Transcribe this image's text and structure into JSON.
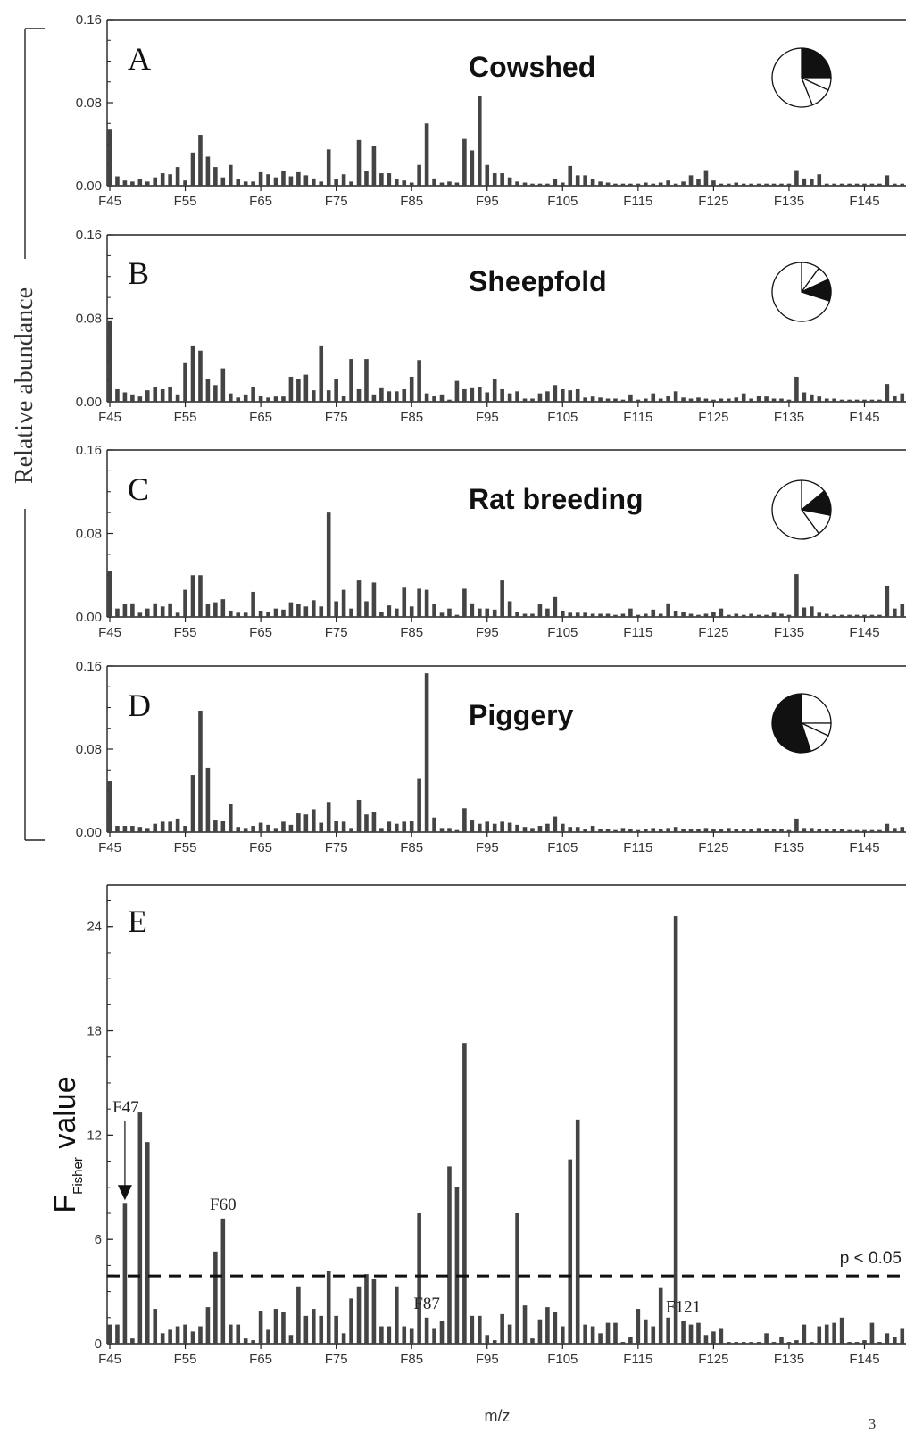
{
  "figure": {
    "shared_ylabel": "Relative abundance",
    "xlabel": "m/z",
    "page_number": "3",
    "threshold_label": "p < 0.05"
  },
  "colors": {
    "bar": "#444444",
    "axis": "#222222",
    "pie_fill": "#111111"
  },
  "chart_data": [
    {
      "type": "bar",
      "panel": "A",
      "title": "Cowshed",
      "ylim": [
        0,
        0.16
      ],
      "yticks": [
        "0.00",
        "0.08",
        "0.16"
      ],
      "xlim": [
        45,
        150
      ],
      "xticks": [
        "F45",
        "F55",
        "F65",
        "F75",
        "F85",
        "F95",
        "F105",
        "F115",
        "F125",
        "F135",
        "F145"
      ],
      "pie": [
        {
          "value": 0.25,
          "filled": true
        },
        {
          "value": 0.07,
          "filled": false
        },
        {
          "value": 0.12,
          "filled": false
        },
        {
          "value": 0.56,
          "filled": false
        }
      ],
      "x": [
        45,
        46,
        47,
        48,
        49,
        50,
        51,
        52,
        53,
        54,
        55,
        56,
        57,
        58,
        59,
        60,
        61,
        62,
        63,
        64,
        65,
        66,
        67,
        68,
        69,
        70,
        71,
        72,
        73,
        74,
        75,
        76,
        77,
        78,
        79,
        80,
        81,
        82,
        83,
        84,
        85,
        86,
        87,
        88,
        89,
        90,
        91,
        92,
        93,
        94,
        95,
        96,
        97,
        98,
        99,
        100,
        101,
        102,
        103,
        104,
        105,
        106,
        107,
        108,
        109,
        110,
        111,
        112,
        113,
        114,
        115,
        116,
        117,
        118,
        119,
        120,
        121,
        122,
        123,
        124,
        125,
        126,
        127,
        128,
        129,
        130,
        131,
        132,
        133,
        134,
        135,
        136,
        137,
        138,
        139,
        140,
        141,
        142,
        143,
        144,
        145,
        146,
        147,
        148,
        149,
        150
      ],
      "values": [
        0.054,
        0.009,
        0.005,
        0.004,
        0.006,
        0.004,
        0.008,
        0.012,
        0.011,
        0.018,
        0.005,
        0.032,
        0.049,
        0.028,
        0.018,
        0.008,
        0.02,
        0.006,
        0.004,
        0.004,
        0.013,
        0.011,
        0.008,
        0.014,
        0.009,
        0.013,
        0.01,
        0.007,
        0.004,
        0.035,
        0.006,
        0.011,
        0.004,
        0.044,
        0.014,
        0.038,
        0.012,
        0.012,
        0.006,
        0.005,
        0.003,
        0.02,
        0.06,
        0.007,
        0.003,
        0.004,
        0.003,
        0.045,
        0.034,
        0.086,
        0.02,
        0.012,
        0.012,
        0.008,
        0.004,
        0.003,
        0.002,
        0.002,
        0.002,
        0.006,
        0.003,
        0.019,
        0.01,
        0.01,
        0.006,
        0.004,
        0.003,
        0.002,
        0.002,
        0.002,
        0.002,
        0.003,
        0.002,
        0.003,
        0.005,
        0.002,
        0.004,
        0.01,
        0.006,
        0.015,
        0.005,
        0.002,
        0.002,
        0.003,
        0.002,
        0.002,
        0.002,
        0.002,
        0.002,
        0.002,
        0.002,
        0.015,
        0.007,
        0.006,
        0.011,
        0.002,
        0.002,
        0.002,
        0.002,
        0.002,
        0.002,
        0.002,
        0.002,
        0.01,
        0.002,
        0.002
      ]
    },
    {
      "type": "bar",
      "panel": "B",
      "title": "Sheepfold",
      "ylim": [
        0,
        0.16
      ],
      "yticks": [
        "0.00",
        "0.08",
        "0.16"
      ],
      "xlim": [
        45,
        150
      ],
      "xticks": [
        "F45",
        "F55",
        "F65",
        "F75",
        "F85",
        "F95",
        "F105",
        "F115",
        "F125",
        "F135",
        "F145"
      ],
      "pie": [
        {
          "value": 0.1,
          "filled": false
        },
        {
          "value": 0.08,
          "filled": false
        },
        {
          "value": 0.12,
          "filled": true
        },
        {
          "value": 0.7,
          "filled": false
        }
      ],
      "x": [
        45,
        46,
        47,
        48,
        49,
        50,
        51,
        52,
        53,
        54,
        55,
        56,
        57,
        58,
        59,
        60,
        61,
        62,
        63,
        64,
        65,
        66,
        67,
        68,
        69,
        70,
        71,
        72,
        73,
        74,
        75,
        76,
        77,
        78,
        79,
        80,
        81,
        82,
        83,
        84,
        85,
        86,
        87,
        88,
        89,
        90,
        91,
        92,
        93,
        94,
        95,
        96,
        97,
        98,
        99,
        100,
        101,
        102,
        103,
        104,
        105,
        106,
        107,
        108,
        109,
        110,
        111,
        112,
        113,
        114,
        115,
        116,
        117,
        118,
        119,
        120,
        121,
        122,
        123,
        124,
        125,
        126,
        127,
        128,
        129,
        130,
        131,
        132,
        133,
        134,
        135,
        136,
        137,
        138,
        139,
        140,
        141,
        142,
        143,
        144,
        145,
        146,
        147,
        148,
        149,
        150
      ],
      "values": [
        0.078,
        0.012,
        0.009,
        0.007,
        0.005,
        0.011,
        0.014,
        0.012,
        0.014,
        0.007,
        0.037,
        0.054,
        0.049,
        0.022,
        0.016,
        0.032,
        0.008,
        0.004,
        0.007,
        0.014,
        0.006,
        0.004,
        0.005,
        0.005,
        0.024,
        0.022,
        0.026,
        0.011,
        0.054,
        0.011,
        0.022,
        0.006,
        0.041,
        0.012,
        0.041,
        0.007,
        0.013,
        0.01,
        0.01,
        0.012,
        0.024,
        0.04,
        0.008,
        0.006,
        0.007,
        0.002,
        0.02,
        0.012,
        0.013,
        0.014,
        0.009,
        0.022,
        0.012,
        0.008,
        0.01,
        0.003,
        0.003,
        0.008,
        0.01,
        0.016,
        0.012,
        0.011,
        0.012,
        0.004,
        0.005,
        0.004,
        0.003,
        0.003,
        0.002,
        0.007,
        0.002,
        0.003,
        0.008,
        0.003,
        0.006,
        0.01,
        0.004,
        0.003,
        0.004,
        0.003,
        0.002,
        0.003,
        0.003,
        0.004,
        0.008,
        0.003,
        0.006,
        0.005,
        0.003,
        0.003,
        0.002,
        0.024,
        0.009,
        0.007,
        0.005,
        0.003,
        0.003,
        0.002,
        0.002,
        0.002,
        0.002,
        0.002,
        0.002,
        0.017,
        0.006,
        0.008
      ]
    },
    {
      "type": "bar",
      "panel": "C",
      "title": "Rat breeding",
      "ylim": [
        0,
        0.16
      ],
      "yticks": [
        "0.00",
        "0.08",
        "0.16"
      ],
      "xlim": [
        45,
        150
      ],
      "xticks": [
        "F45",
        "F55",
        "F65",
        "F75",
        "F85",
        "F95",
        "F105",
        "F115",
        "F125",
        "F135",
        "F145"
      ],
      "pie": [
        {
          "value": 0.14,
          "filled": false
        },
        {
          "value": 0.14,
          "filled": true
        },
        {
          "value": 0.12,
          "filled": false
        },
        {
          "value": 0.6,
          "filled": false
        }
      ],
      "x": [
        45,
        46,
        47,
        48,
        49,
        50,
        51,
        52,
        53,
        54,
        55,
        56,
        57,
        58,
        59,
        60,
        61,
        62,
        63,
        64,
        65,
        66,
        67,
        68,
        69,
        70,
        71,
        72,
        73,
        74,
        75,
        76,
        77,
        78,
        79,
        80,
        81,
        82,
        83,
        84,
        85,
        86,
        87,
        88,
        89,
        90,
        91,
        92,
        93,
        94,
        95,
        96,
        97,
        98,
        99,
        100,
        101,
        102,
        103,
        104,
        105,
        106,
        107,
        108,
        109,
        110,
        111,
        112,
        113,
        114,
        115,
        116,
        117,
        118,
        119,
        120,
        121,
        122,
        123,
        124,
        125,
        126,
        127,
        128,
        129,
        130,
        131,
        132,
        133,
        134,
        135,
        136,
        137,
        138,
        139,
        140,
        141,
        142,
        143,
        144,
        145,
        146,
        147,
        148,
        149,
        150
      ],
      "values": [
        0.044,
        0.008,
        0.012,
        0.013,
        0.004,
        0.008,
        0.013,
        0.01,
        0.013,
        0.004,
        0.026,
        0.04,
        0.04,
        0.012,
        0.014,
        0.017,
        0.006,
        0.004,
        0.004,
        0.024,
        0.006,
        0.005,
        0.008,
        0.007,
        0.014,
        0.012,
        0.01,
        0.016,
        0.01,
        0.1,
        0.015,
        0.026,
        0.008,
        0.035,
        0.015,
        0.033,
        0.005,
        0.011,
        0.008,
        0.028,
        0.01,
        0.027,
        0.026,
        0.012,
        0.004,
        0.008,
        0.002,
        0.027,
        0.013,
        0.008,
        0.008,
        0.007,
        0.035,
        0.015,
        0.005,
        0.003,
        0.003,
        0.012,
        0.008,
        0.019,
        0.006,
        0.004,
        0.004,
        0.004,
        0.003,
        0.003,
        0.003,
        0.002,
        0.003,
        0.008,
        0.002,
        0.003,
        0.007,
        0.003,
        0.013,
        0.006,
        0.005,
        0.003,
        0.002,
        0.003,
        0.005,
        0.008,
        0.002,
        0.003,
        0.002,
        0.003,
        0.002,
        0.002,
        0.004,
        0.003,
        0.002,
        0.041,
        0.009,
        0.01,
        0.004,
        0.003,
        0.002,
        0.002,
        0.002,
        0.002,
        0.002,
        0.002,
        0.002,
        0.03,
        0.008,
        0.012
      ]
    },
    {
      "type": "bar",
      "panel": "D",
      "title": "Piggery",
      "ylim": [
        0,
        0.16
      ],
      "yticks": [
        "0.00",
        "0.08",
        "0.16"
      ],
      "xlim": [
        45,
        150
      ],
      "xticks": [
        "F45",
        "F55",
        "F65",
        "F75",
        "F85",
        "F95",
        "F105",
        "F115",
        "F125",
        "F135",
        "F145"
      ],
      "pie": [
        {
          "value": 0.25,
          "filled": false
        },
        {
          "value": 0.07,
          "filled": false
        },
        {
          "value": 0.13,
          "filled": false
        },
        {
          "value": 0.55,
          "filled": true
        }
      ],
      "x": [
        45,
        46,
        47,
        48,
        49,
        50,
        51,
        52,
        53,
        54,
        55,
        56,
        57,
        58,
        59,
        60,
        61,
        62,
        63,
        64,
        65,
        66,
        67,
        68,
        69,
        70,
        71,
        72,
        73,
        74,
        75,
        76,
        77,
        78,
        79,
        80,
        81,
        82,
        83,
        84,
        85,
        86,
        87,
        88,
        89,
        90,
        91,
        92,
        93,
        94,
        95,
        96,
        97,
        98,
        99,
        100,
        101,
        102,
        103,
        104,
        105,
        106,
        107,
        108,
        109,
        110,
        111,
        112,
        113,
        114,
        115,
        116,
        117,
        118,
        119,
        120,
        121,
        122,
        123,
        124,
        125,
        126,
        127,
        128,
        129,
        130,
        131,
        132,
        133,
        134,
        135,
        136,
        137,
        138,
        139,
        140,
        141,
        142,
        143,
        144,
        145,
        146,
        147,
        148,
        149,
        150
      ],
      "values": [
        0.049,
        0.006,
        0.006,
        0.006,
        0.005,
        0.004,
        0.008,
        0.01,
        0.01,
        0.013,
        0.006,
        0.055,
        0.117,
        0.062,
        0.012,
        0.011,
        0.027,
        0.005,
        0.004,
        0.006,
        0.009,
        0.007,
        0.004,
        0.01,
        0.007,
        0.018,
        0.017,
        0.022,
        0.009,
        0.029,
        0.011,
        0.01,
        0.004,
        0.031,
        0.017,
        0.019,
        0.004,
        0.01,
        0.008,
        0.01,
        0.011,
        0.052,
        0.153,
        0.014,
        0.004,
        0.004,
        0.002,
        0.023,
        0.012,
        0.008,
        0.01,
        0.008,
        0.01,
        0.009,
        0.007,
        0.005,
        0.004,
        0.006,
        0.008,
        0.015,
        0.008,
        0.005,
        0.005,
        0.003,
        0.006,
        0.003,
        0.003,
        0.002,
        0.004,
        0.003,
        0.002,
        0.003,
        0.004,
        0.003,
        0.004,
        0.005,
        0.003,
        0.003,
        0.003,
        0.004,
        0.003,
        0.003,
        0.004,
        0.003,
        0.003,
        0.003,
        0.004,
        0.003,
        0.003,
        0.003,
        0.002,
        0.013,
        0.004,
        0.004,
        0.003,
        0.003,
        0.003,
        0.003,
        0.002,
        0.002,
        0.002,
        0.002,
        0.002,
        0.008,
        0.004,
        0.005
      ]
    },
    {
      "type": "bar",
      "panel": "E",
      "ylabel": "F",
      "ylabel_subscript": "Fisher",
      "ylabel_suffix": "value",
      "xlabel": "m/z",
      "ylim": [
        0,
        26.4
      ],
      "yticks": [
        "0",
        "6",
        "12",
        "18",
        "24"
      ],
      "xlim": [
        45,
        150
      ],
      "xticks": [
        "F45",
        "F55",
        "F65",
        "F75",
        "F85",
        "F95",
        "F105",
        "F115",
        "F125",
        "F135",
        "F145"
      ],
      "threshold": 3.9,
      "annotations": [
        {
          "label": "F47",
          "x": 47,
          "arrow": true
        },
        {
          "label": "F60",
          "x": 60
        },
        {
          "label": "F87",
          "x": 87
        },
        {
          "label": "F121",
          "x": 121
        }
      ],
      "x": [
        45,
        46,
        47,
        48,
        49,
        50,
        51,
        52,
        53,
        54,
        55,
        56,
        57,
        58,
        59,
        60,
        61,
        62,
        63,
        64,
        65,
        66,
        67,
        68,
        69,
        70,
        71,
        72,
        73,
        74,
        75,
        76,
        77,
        78,
        79,
        80,
        81,
        82,
        83,
        84,
        85,
        86,
        87,
        88,
        89,
        90,
        91,
        92,
        93,
        94,
        95,
        96,
        97,
        98,
        99,
        100,
        101,
        102,
        103,
        104,
        105,
        106,
        107,
        108,
        109,
        110,
        111,
        112,
        113,
        114,
        115,
        116,
        117,
        118,
        119,
        120,
        121,
        122,
        123,
        124,
        125,
        126,
        127,
        128,
        129,
        130,
        131,
        132,
        133,
        134,
        135,
        136,
        137,
        138,
        139,
        140,
        141,
        142,
        143,
        144,
        145,
        146,
        147,
        148,
        149,
        150
      ],
      "values": [
        1.1,
        1.1,
        8.1,
        0.3,
        13.3,
        11.6,
        2.0,
        0.6,
        0.8,
        1.0,
        1.1,
        0.7,
        1.0,
        2.1,
        5.3,
        7.2,
        1.1,
        1.1,
        0.3,
        0.2,
        1.9,
        0.8,
        2.0,
        1.8,
        0.5,
        3.3,
        1.6,
        2.0,
        1.6,
        4.2,
        1.6,
        0.6,
        2.6,
        3.3,
        4.0,
        3.7,
        1.0,
        1.0,
        3.3,
        1.0,
        0.9,
        7.5,
        1.5,
        0.9,
        1.3,
        10.2,
        9.0,
        17.3,
        1.6,
        1.6,
        0.5,
        0.2,
        1.7,
        1.1,
        7.5,
        2.2,
        0.3,
        1.4,
        2.1,
        1.8,
        1.0,
        10.6,
        12.9,
        1.1,
        1.0,
        0.6,
        1.2,
        1.2,
        0.1,
        0.4,
        2.0,
        1.4,
        1.0,
        3.2,
        1.5,
        24.6,
        1.3,
        1.1,
        1.2,
        0.5,
        0.7,
        0.9,
        0.1,
        0.1,
        0.1,
        0.1,
        0.1,
        0.6,
        0.1,
        0.4,
        0.1,
        0.2,
        1.1,
        0.1,
        1.0,
        1.1,
        1.2,
        1.5,
        0.1,
        0.1,
        0.2,
        1.2,
        0.1,
        0.6,
        0.4,
        0.9
      ]
    }
  ]
}
